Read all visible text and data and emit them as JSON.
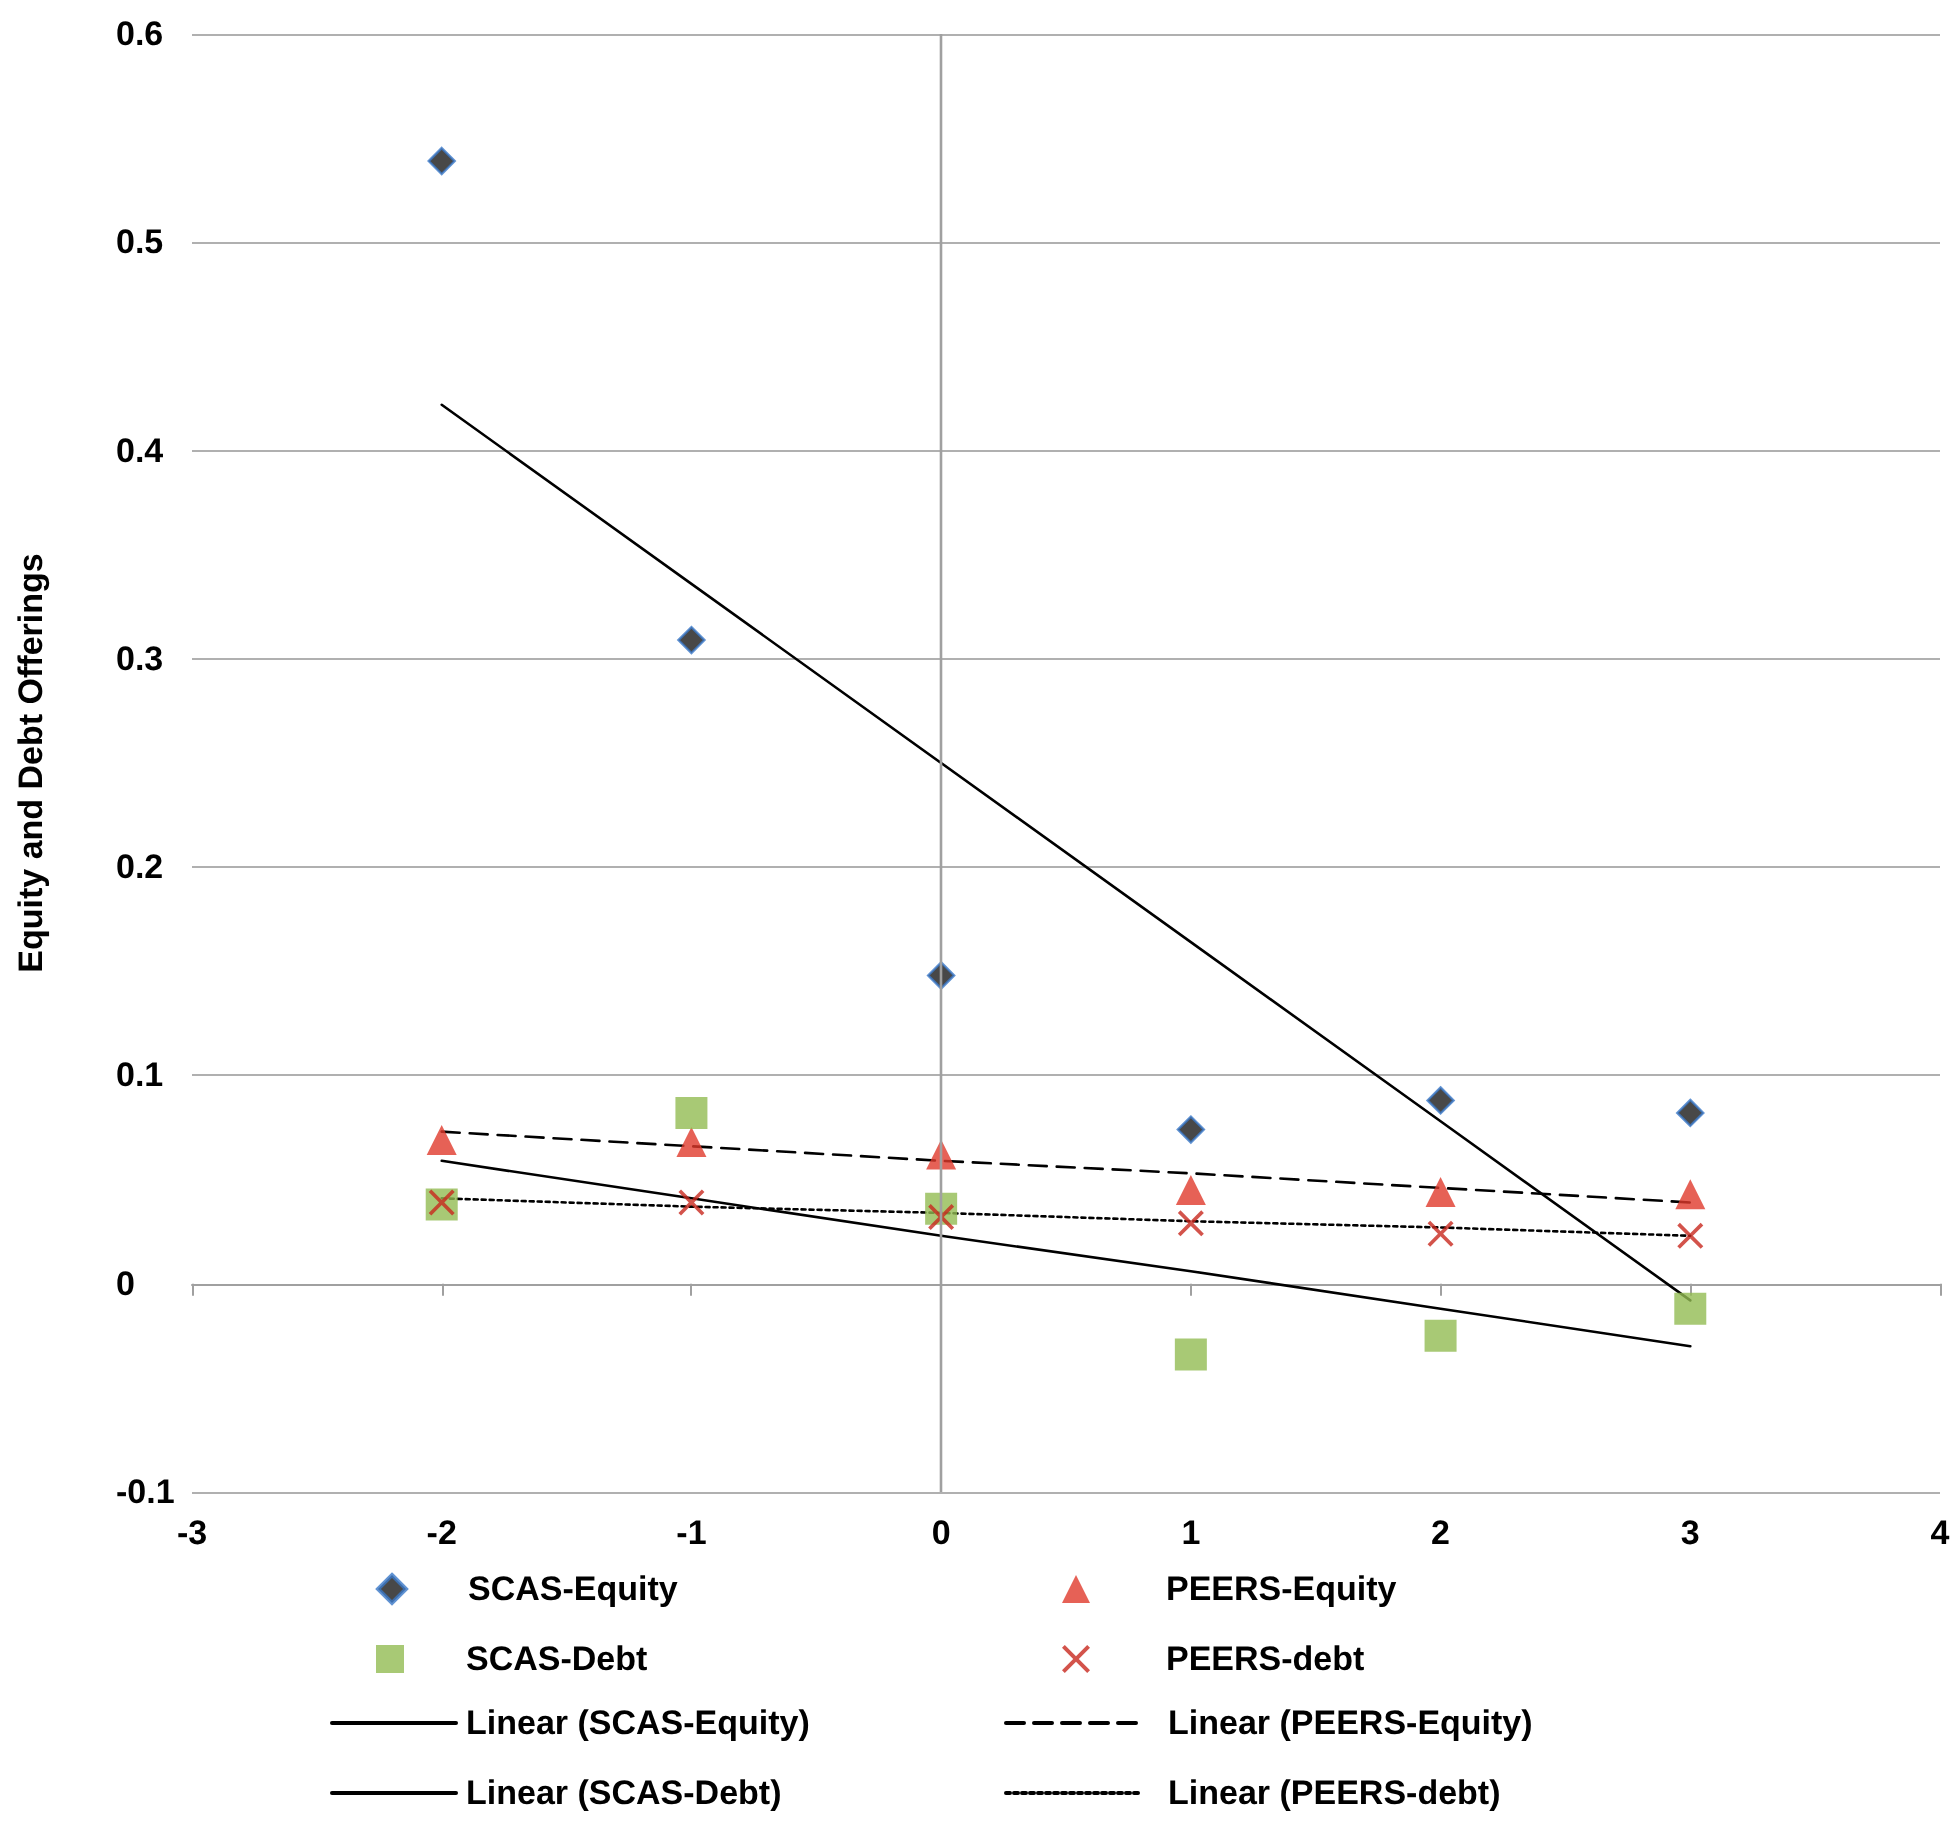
{
  "chart_data": {
    "type": "scatter",
    "ylabel": "Equity and Debt Offerings",
    "x": [
      -2,
      -1,
      0,
      1,
      2,
      3
    ],
    "xlim": [
      -3,
      4
    ],
    "xticks": [
      -3,
      -2,
      -1,
      0,
      1,
      2,
      3,
      4
    ],
    "ylim": [
      -0.1,
      0.6
    ],
    "yticks": [
      -0.1,
      0,
      0.1,
      0.2,
      0.3,
      0.4,
      0.5,
      0.6
    ],
    "grid": "y",
    "legend": "bottom",
    "ref_lines": [
      {
        "axis": "x",
        "value": 0,
        "color": "#a0a0a0",
        "line_style": "solid"
      }
    ],
    "series": [
      {
        "name": "SCAS-Equity",
        "color": "#1a1a1a",
        "marker": "diamond",
        "values": [
          0.539,
          0.309,
          0.148,
          0.074,
          0.088,
          0.082
        ]
      },
      {
        "name": "PEERS-Equity",
        "color": "#e03a2c",
        "marker": "triangle",
        "values": [
          0.069,
          0.068,
          0.062,
          0.045,
          0.044,
          0.043
        ]
      },
      {
        "name": "SCAS-Debt",
        "color": "#92bb52",
        "marker": "square",
        "values": [
          0.038,
          0.082,
          0.036,
          -0.034,
          -0.025,
          -0.012
        ]
      },
      {
        "name": "PEERS-debt",
        "color": "#c8281e",
        "marker": "cross",
        "values": [
          0.039,
          0.039,
          0.032,
          0.029,
          0.024,
          0.023
        ]
      },
      {
        "name": "Linear (SCAS-Equity)",
        "type": "line",
        "color": "#000000",
        "marker": "none",
        "line_style": "solid",
        "values": [
          0.422,
          0.336,
          0.25,
          0.164,
          0.078,
          -0.008
        ]
      },
      {
        "name": "Linear (PEERS-Equity)",
        "type": "line",
        "color": "#000000",
        "marker": "none",
        "line_style": "dashed",
        "values": [
          0.073,
          0.066,
          0.059,
          0.053,
          0.046,
          0.039
        ]
      },
      {
        "name": "Linear (SCAS-Debt)",
        "type": "line",
        "color": "#000000",
        "marker": "none",
        "line_style": "solid",
        "values": [
          0.059,
          0.041,
          0.023,
          0.006,
          -0.012,
          -0.03
        ]
      },
      {
        "name": "Linear (PEERS-debt)",
        "type": "line",
        "color": "#000000",
        "marker": "none",
        "line_style": "dotted",
        "values": [
          0.041,
          0.037,
          0.034,
          0.03,
          0.027,
          0.023
        ]
      }
    ]
  }
}
